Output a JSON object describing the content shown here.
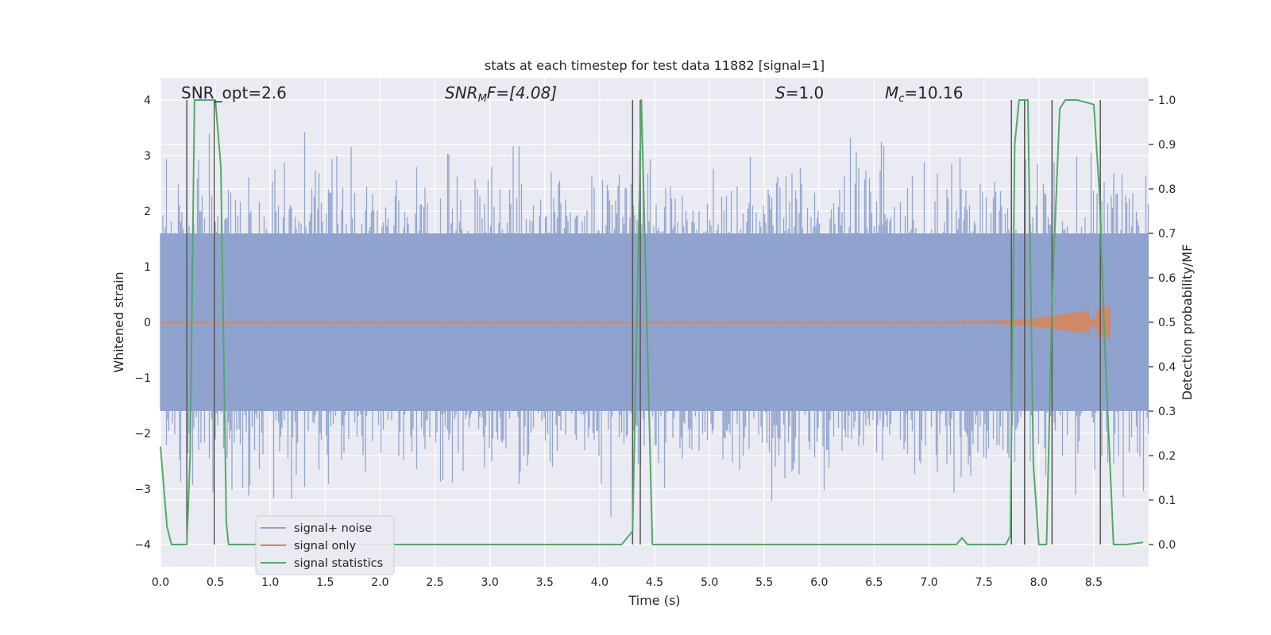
{
  "chart_data": {
    "type": "line",
    "title": "stats at each timestep for test data 11882 [signal=1]",
    "xlabel": "Time (s)",
    "ylabel": "Whitened strain",
    "y2label": "Detection probability/MF",
    "xlim": [
      0,
      9
    ],
    "ylim": [
      -4.4,
      4.4
    ],
    "y2lim": [
      -0.05,
      1.05
    ],
    "xticks": [
      0.0,
      0.5,
      1.0,
      1.5,
      2.0,
      2.5,
      3.0,
      3.5,
      4.0,
      4.5,
      5.0,
      5.5,
      6.0,
      6.5,
      7.0,
      7.5,
      8.0,
      8.5
    ],
    "xtick_labels": [
      "0.0",
      "0.5",
      "1.0",
      "1.5",
      "2.0",
      "2.5",
      "3.0",
      "3.5",
      "4.0",
      "4.5",
      "5.0",
      "5.5",
      "6.0",
      "6.5",
      "7.0",
      "7.5",
      "8.0",
      "8.5"
    ],
    "yticks": [
      -4,
      -3,
      -2,
      -1,
      0,
      1,
      2,
      3,
      4
    ],
    "ytick_labels": [
      "−4",
      "−3",
      "−2",
      "−1",
      "0",
      "1",
      "2",
      "3",
      "4"
    ],
    "y2ticks": [
      0.0,
      0.1,
      0.2,
      0.3,
      0.4,
      0.5,
      0.6,
      0.7,
      0.8,
      0.9,
      1.0
    ],
    "y2tick_labels": [
      "0.0",
      "0.1",
      "0.2",
      "0.3",
      "0.4",
      "0.5",
      "0.6",
      "0.7",
      "0.8",
      "0.9",
      "1.0"
    ],
    "grid": true,
    "legend_position": "lower-left",
    "annotations": {
      "snr_opt": "SNR_opt=2.6",
      "snr_mf_base": "SNR",
      "snr_mf_sub": "M",
      "snr_mf_rest": "F=[4.08]",
      "s_italic": "S",
      "s_rest": "=1.0",
      "mc_base": "M",
      "mc_sub": "c",
      "mc_rest": "=10.16"
    },
    "series": [
      {
        "name": "signal+ noise",
        "color": "#8ea1cc",
        "noise_band": [
          -1.6,
          1.6
        ],
        "peak_range": [
          -3.9,
          3.8
        ]
      },
      {
        "name": "signal only",
        "color": "#dd8452",
        "chirp_start": 7.3,
        "chirp_end": 8.65,
        "chirp_amp_max": 0.3
      },
      {
        "name": "signal statistics",
        "color": "#55a868",
        "x": [
          0.0,
          0.06,
          0.1,
          0.24,
          0.27,
          0.31,
          0.5,
          0.55,
          0.6,
          0.62,
          1.0,
          2.0,
          3.0,
          4.0,
          4.2,
          4.3,
          4.38,
          4.48,
          4.6,
          5.0,
          6.0,
          7.0,
          7.25,
          7.3,
          7.35,
          7.5,
          7.7,
          7.74,
          7.78,
          7.82,
          7.9,
          7.95,
          8.0,
          8.07,
          8.12,
          8.19,
          8.24,
          8.35,
          8.5,
          8.55,
          8.6,
          8.68,
          8.8,
          8.95
        ],
        "y": [
          0.22,
          0.04,
          0.0,
          0.0,
          0.2,
          1.0,
          1.0,
          0.85,
          0.05,
          0.0,
          0.0,
          0.0,
          0.0,
          0.0,
          0.0,
          0.03,
          1.0,
          0.0,
          0.0,
          0.0,
          0.0,
          0.0,
          0.0,
          0.015,
          0.0,
          0.0,
          0.0,
          0.02,
          0.9,
          1.0,
          1.0,
          0.18,
          0.0,
          0.0,
          0.55,
          0.98,
          1.0,
          1.0,
          0.99,
          0.8,
          0.45,
          0.0,
          0.0,
          0.005
        ]
      }
    ],
    "vlines": [
      0.24,
      0.49,
      4.3,
      4.37,
      7.75,
      7.87,
      8.12,
      8.56
    ]
  }
}
